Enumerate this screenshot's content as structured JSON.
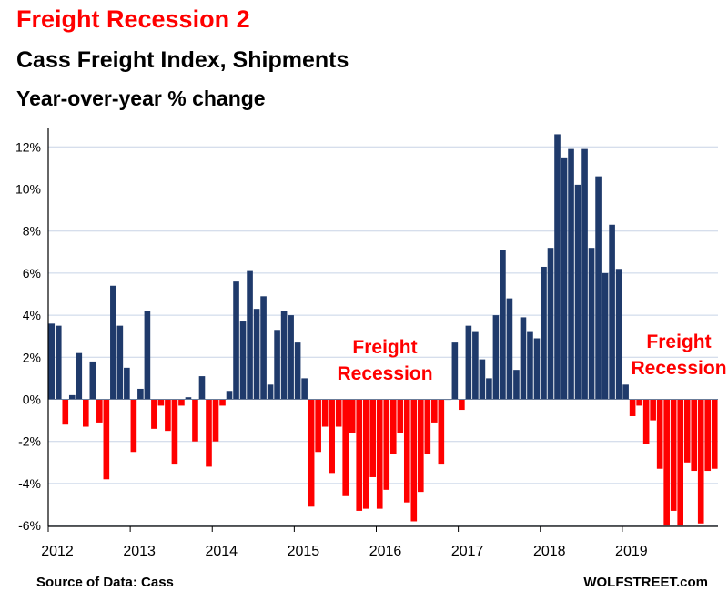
{
  "header": {
    "title": "Freight Recession 2",
    "subtitle": "Cass Freight Index, Shipments",
    "subtitle2": "Year-over-year % change"
  },
  "footer": {
    "source": "Source of Data: Cass",
    "brand": "WOLFSTREET.com"
  },
  "chart_data": {
    "type": "bar",
    "ylim": [
      -6,
      13
    ],
    "yticks": [
      12,
      10,
      8,
      6,
      4,
      2,
      0,
      -2,
      -4,
      -6
    ],
    "ytick_labels": [
      "12%",
      "10%",
      "8%",
      "6%",
      "4%",
      "2%",
      "0%",
      "-2%",
      "-4%",
      "-6%"
    ],
    "year_labels": [
      "2012",
      "2013",
      "2014",
      "2015",
      "2016",
      "2017",
      "2018",
      "2019"
    ],
    "grid": true,
    "colors": {
      "positive": "#1f3a6b",
      "negative": "#ff0000",
      "annotation": "#ff0000",
      "grid": "#c8d4e6",
      "axis": "#000000"
    },
    "start": "2012-01",
    "values": [
      3.6,
      3.5,
      -1.2,
      0.2,
      2.2,
      -1.3,
      1.8,
      -1.1,
      -3.8,
      5.4,
      3.5,
      1.5,
      -2.5,
      0.5,
      4.2,
      -1.4,
      -0.3,
      -1.5,
      -3.1,
      -0.3,
      0.1,
      -2.0,
      1.1,
      -3.2,
      -2.0,
      -0.3,
      0.4,
      5.6,
      3.7,
      6.1,
      4.3,
      4.9,
      0.7,
      3.3,
      4.2,
      4.0,
      2.7,
      1.0,
      -5.1,
      -2.5,
      -1.3,
      -3.5,
      -1.3,
      -4.6,
      -1.6,
      -5.3,
      -5.2,
      -3.7,
      -5.2,
      -4.3,
      -2.6,
      -1.6,
      -4.9,
      -5.8,
      -4.4,
      -2.6,
      -1.1,
      -3.1,
      0.0,
      2.7,
      -0.5,
      3.5,
      3.2,
      1.9,
      1.0,
      4.0,
      7.1,
      4.8,
      1.4,
      3.9,
      3.2,
      2.9,
      6.3,
      7.2,
      12.6,
      11.5,
      11.9,
      10.2,
      11.9,
      7.2,
      10.6,
      6.0,
      8.3,
      6.2,
      0.7,
      -0.8,
      -0.3,
      -2.1,
      -1.0,
      -3.3,
      -6.0,
      -5.3,
      -6.0,
      -3.0,
      -3.4,
      -5.9,
      -3.4,
      -3.3
    ],
    "annotations": [
      {
        "lines": [
          "Freight",
          "Recession"
        ]
      },
      {
        "lines": [
          "Freight",
          "Recession"
        ]
      }
    ]
  }
}
